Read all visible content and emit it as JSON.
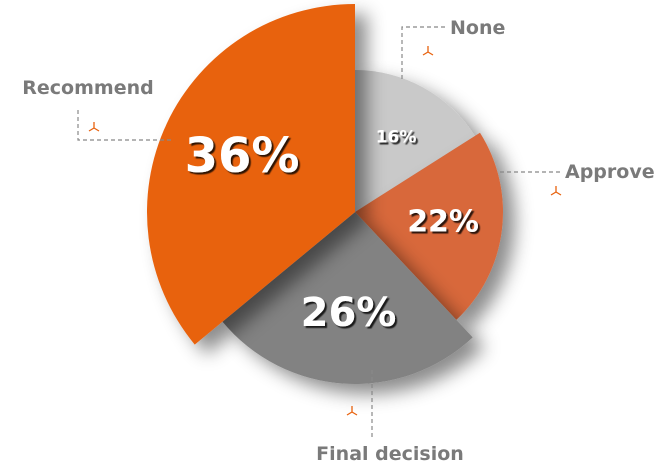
{
  "chart_data": {
    "type": "pie",
    "categories": [
      "None",
      "Approve",
      "Final decision",
      "Recommend"
    ],
    "values": [
      16,
      22,
      26,
      36
    ],
    "value_labels": [
      "16%",
      "22%",
      "26%",
      "36%"
    ],
    "colors": [
      "#c9c9c9",
      "#d8673a",
      "#828282",
      "#e8620e"
    ]
  }
}
